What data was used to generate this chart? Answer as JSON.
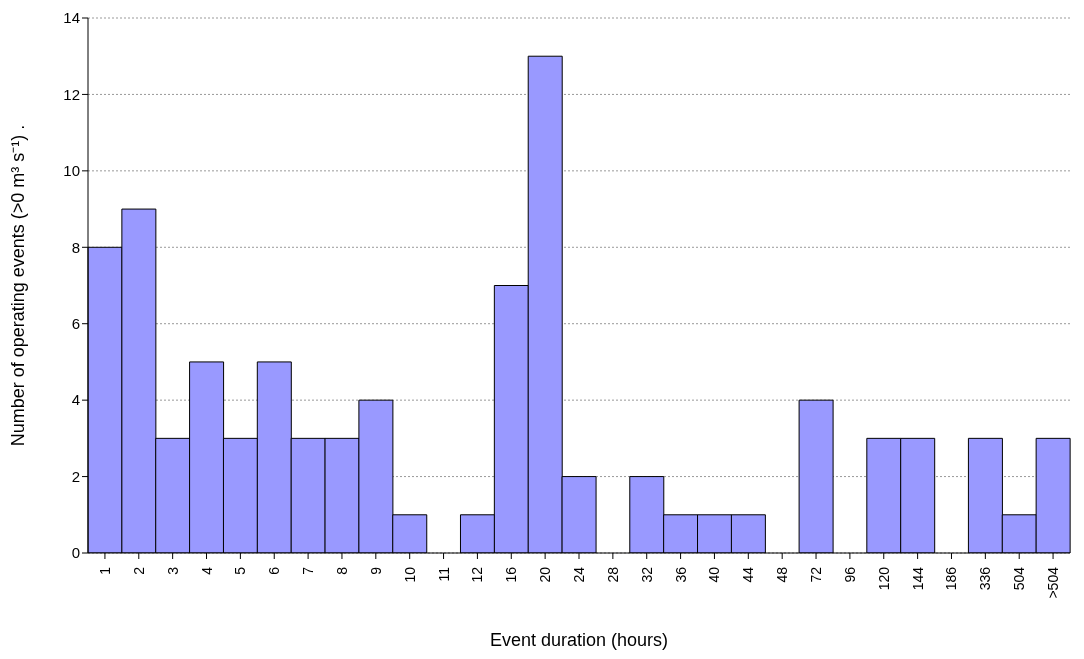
{
  "chart_data": {
    "type": "bar",
    "xlabel": "Event duration (hours)",
    "ylabel": "Number of operating events (>0 m³ s⁻¹)  .",
    "categories": [
      "1",
      "2",
      "3",
      "4",
      "5",
      "6",
      "7",
      "8",
      "9",
      "10",
      "11",
      "12",
      "16",
      "20",
      "24",
      "28",
      "32",
      "36",
      "40",
      "44",
      "48",
      "72",
      "96",
      "120",
      "144",
      "186",
      "336",
      "504",
      ">504"
    ],
    "values": [
      8,
      9,
      3,
      5,
      3,
      5,
      3,
      3,
      4,
      1,
      0,
      1,
      7,
      13,
      2,
      0,
      2,
      1,
      1,
      1,
      0,
      4,
      0,
      3,
      3,
      0,
      3,
      1,
      3
    ],
    "color": "#9999ff",
    "ylim": [
      0,
      14
    ],
    "yticks": [
      0,
      2,
      4,
      6,
      8,
      10,
      12,
      14
    ],
    "grid": "y",
    "legend": false
  }
}
